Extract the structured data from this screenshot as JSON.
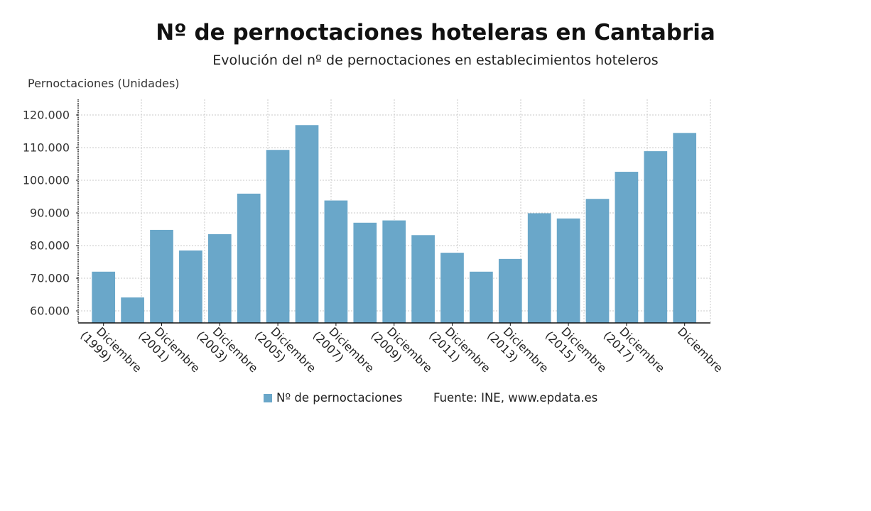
{
  "chart_data": {
    "type": "bar",
    "title": "Nº de pernoctaciones hoteleras en Cantabria",
    "subtitle": "Evolución del nº de pernoctaciones en establecimientos hoteleros",
    "ylabel": "Pernoctaciones (Unidades)",
    "xlabel": "",
    "ylim": [
      56300,
      120000
    ],
    "y_ticks": [
      {
        "value": 60000,
        "label": "60.000"
      },
      {
        "value": 70000,
        "label": "70.000"
      },
      {
        "value": 80000,
        "label": "80.000"
      },
      {
        "value": 90000,
        "label": "90.000"
      },
      {
        "value": 100000,
        "label": "100.000"
      },
      {
        "value": 110000,
        "label": "110.000"
      },
      {
        "value": 120000,
        "label": "120.000"
      }
    ],
    "x_tick_labels": [
      {
        "bar": 0,
        "line1": "Diciembre",
        "line2": "(1999)"
      },
      {
        "bar": 2,
        "line1": "Diciembre",
        "line2": "(2001)"
      },
      {
        "bar": 4,
        "line1": "Diciembre",
        "line2": "(2003)"
      },
      {
        "bar": 6,
        "line1": "Diciembre",
        "line2": "(2005)"
      },
      {
        "bar": 8,
        "line1": "Diciembre",
        "line2": "(2007)"
      },
      {
        "bar": 10,
        "line1": "Diciembre",
        "line2": "(2009)"
      },
      {
        "bar": 12,
        "line1": "Diciembre",
        "line2": "(2011)"
      },
      {
        "bar": 14,
        "line1": "Diciembre",
        "line2": "(2013)"
      },
      {
        "bar": 16,
        "line1": "Diciembre",
        "line2": "(2015)"
      },
      {
        "bar": 18,
        "line1": "Diciembre",
        "line2": "(2017)"
      },
      {
        "bar": 20,
        "line1": "Diciembre",
        "line2": ""
      }
    ],
    "series": [
      {
        "name": "Nº de pernoctaciones",
        "color": "#6aa7c9",
        "values": [
          72000,
          64100,
          84800,
          78500,
          83500,
          95900,
          109300,
          116900,
          93800,
          87000,
          87700,
          83200,
          77800,
          72000,
          75900,
          89900,
          88300,
          94300,
          102600,
          108900,
          114500
        ]
      }
    ],
    "grid": true,
    "legend": "bottom",
    "source": "Fuente: INE, www.epdata.es"
  }
}
